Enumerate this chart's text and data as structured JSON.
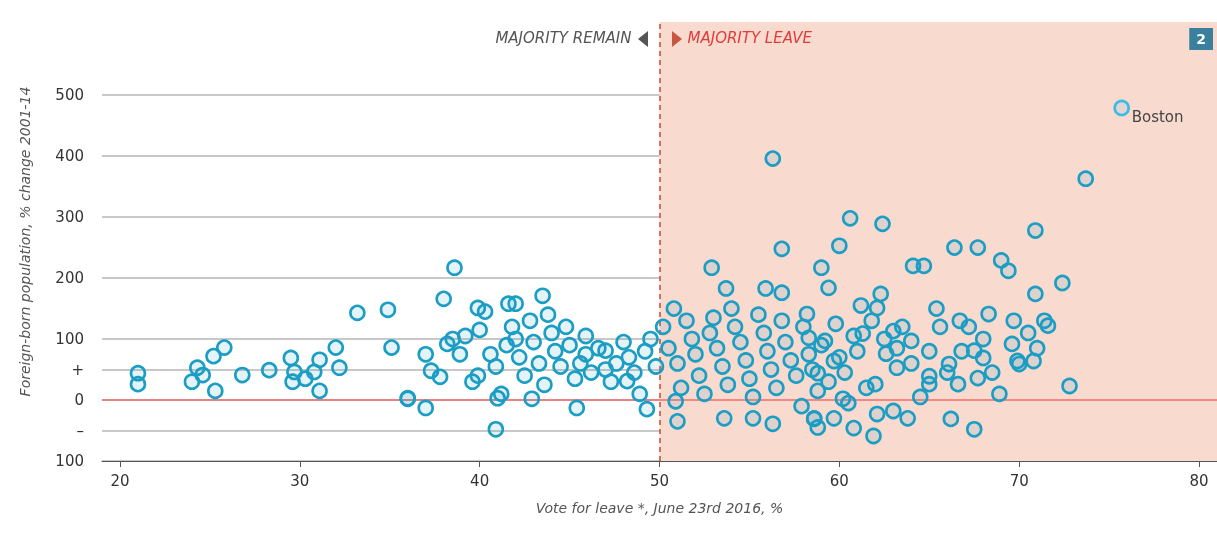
{
  "chart_data": {
    "type": "scatter",
    "xlabel": "Vote for leave *, June 23rd 2016, %",
    "ylabel": "Foreign-born population, % change 2001-14",
    "xlim": [
      19,
      81
    ],
    "xticks": [
      20,
      30,
      40,
      50,
      60,
      70,
      80
    ],
    "ylim": [
      -100,
      620
    ],
    "yticks": [
      {
        "value": -100,
        "label": "100"
      },
      {
        "value": -50,
        "label": "–"
      },
      0,
      {
        "value": 50,
        "label": "+"
      },
      100,
      200,
      300,
      400,
      500
    ],
    "grid": "y",
    "marker": "circle",
    "ref_lines": [
      {
        "axis": "y",
        "value": 0,
        "color": "#f06b6b",
        "line_style": "solid"
      },
      {
        "axis": "x",
        "value": 50,
        "color": "#c8553d",
        "line_style": "dashed"
      }
    ],
    "bands": [
      {
        "axis": "x",
        "from": 50,
        "to": 81,
        "label": "MAJORITY LEAVE",
        "color": "#f9dacf"
      }
    ],
    "annotations": [
      {
        "text": "MAJORITY REMAIN",
        "x": 50
      },
      "2",
      {
        "text": "Boston",
        "x": 75.7,
        "y": 479
      }
    ],
    "series": [
      {
        "color": "#1b9dc4",
        "x": [
          21.0,
          21.0,
          24.0,
          24.3,
          24.6,
          25.2,
          25.3,
          25.8,
          26.8,
          28.3,
          29.5,
          29.7,
          29.6,
          30.3,
          30.8,
          31.1,
          31.1,
          32.0,
          32.2,
          33.2,
          34.9,
          35.1,
          36.0,
          38.6,
          38.0,
          39.9,
          41.6,
          42.0,
          43.5,
          40.9,
          37.0,
          36.0,
          41.0,
          42.9,
          45.4,
          45.9,
          47.0,
          48.2,
          49.3,
          50.9,
          51.0,
          52.9,
          53.7,
          56.3,
          56.8,
          55.9,
          56.8,
          53.6,
          55.2,
          56.3,
          58.6,
          73.7,
          70.9,
          60.6,
          62.4,
          60.0,
          59.0,
          59.4,
          64.1,
          64.7,
          66.4,
          67.7,
          69.0,
          69.4,
          72.4,
          70.9,
          71.6,
          71.4,
          72.8,
          68.9,
          66.2,
          67.5,
          65.4,
          66.7,
          68.3,
          69.7,
          70.8,
          69.9,
          68.0,
          68.0,
          67.7,
          66.1,
          66.6,
          65.0,
          63.0,
          64.0,
          62.6,
          61.2,
          62.1,
          62.3,
          61.9,
          60.8,
          58.6,
          63.8,
          63.0,
          62.1,
          59.7,
          58.8,
          60.2,
          58.8,
          59.7,
          61.3,
          58.3,
          58.2,
          59.2,
          62.0,
          63.2,
          65.0,
          67.5,
          69.6,
          70.0,
          37.0,
          37.3,
          37.8,
          38.2,
          38.5,
          38.9,
          39.2,
          39.6,
          39.9,
          40.0,
          40.3,
          40.6,
          40.9,
          41.2,
          41.5,
          41.8,
          42.0,
          42.2,
          42.5,
          42.8,
          43.0,
          43.3,
          43.6,
          43.8,
          44.0,
          44.2,
          44.5,
          44.8,
          45.0,
          45.3,
          45.6,
          45.9,
          46.2,
          46.6,
          47.0,
          47.3,
          47.6,
          48.0,
          48.3,
          48.6,
          48.9,
          49.2,
          49.5,
          49.8,
          50.2,
          50.5,
          50.8,
          51.0,
          51.2,
          51.5,
          51.8,
          52.0,
          52.2,
          52.5,
          52.8,
          53.0,
          53.2,
          53.5,
          53.8,
          54.0,
          54.2,
          54.5,
          54.8,
          55.0,
          55.2,
          55.5,
          55.8,
          56.0,
          56.2,
          56.5,
          56.8,
          57.0,
          57.3,
          57.6,
          57.9,
          58.0,
          58.3,
          58.5,
          58.8,
          59.0,
          59.4,
          59.8,
          60.0,
          60.3,
          60.5,
          60.8,
          61.0,
          61.5,
          61.8,
          62.5,
          63.2,
          63.5,
          64.0,
          64.5,
          65.0,
          65.6,
          66.0,
          66.8,
          67.2,
          68.5,
          70.5,
          71.0
        ],
        "values": [
          44,
          26,
          30,
          53,
          41,
          72,
          15,
          86,
          41,
          49,
          69,
          46,
          30,
          35,
          46,
          66,
          15,
          86,
          53,
          143,
          148,
          86,
          2,
          217,
          166,
          151,
          158,
          158,
          171,
          -48,
          -13,
          3,
          3,
          2,
          -13,
          105,
          81,
          31,
          -15,
          -2,
          -35,
          217,
          183,
          396,
          248,
          183,
          176,
          -30,
          -30,
          -39,
          -30,
          363,
          278,
          298,
          289,
          253,
          217,
          184,
          220,
          220,
          250,
          250,
          229,
          212,
          192,
          174,
          122,
          130,
          23,
          10,
          -31,
          -48,
          150,
          130,
          141,
          130,
          64,
          64,
          100,
          69,
          36,
          59,
          26,
          39,
          113,
          97,
          76,
          155,
          151,
          174,
          -59,
          -46,
          -31,
          -30,
          -18,
          -23,
          -30,
          15,
          2,
          44,
          64,
          109,
          102,
          141,
          97,
          26,
          53,
          26,
          81,
          92,
          59,
          75,
          48,
          38,
          92,
          100,
          75,
          105,
          30,
          40,
          115,
          145,
          75,
          55,
          10,
          90,
          120,
          100,
          70,
          40,
          130,
          95,
          60,
          25,
          140,
          110,
          80,
          55,
          120,
          90,
          35,
          60,
          75,
          45,
          85,
          50,
          30,
          60,
          95,
          70,
          45,
          10,
          80,
          100,
          55,
          120,
          85,
          150,
          60,
          20,
          130,
          100,
          75,
          40,
          10,
          110,
          135,
          85,
          55,
          25,
          150,
          120,
          95,
          65,
          35,
          5,
          140,
          110,
          80,
          50,
          20,
          130,
          95,
          65,
          40,
          -10,
          120,
          75,
          50,
          -45,
          90,
          30,
          125,
          70,
          45,
          -5,
          105,
          80,
          20,
          130,
          100,
          85,
          120,
          60,
          5,
          80,
          120,
          45,
          80,
          120,
          45,
          110,
          85
        ]
      },
      {
        "color": "#3bbbe8",
        "x": [
          75.7
        ],
        "values": [
          479
        ]
      }
    ]
  }
}
